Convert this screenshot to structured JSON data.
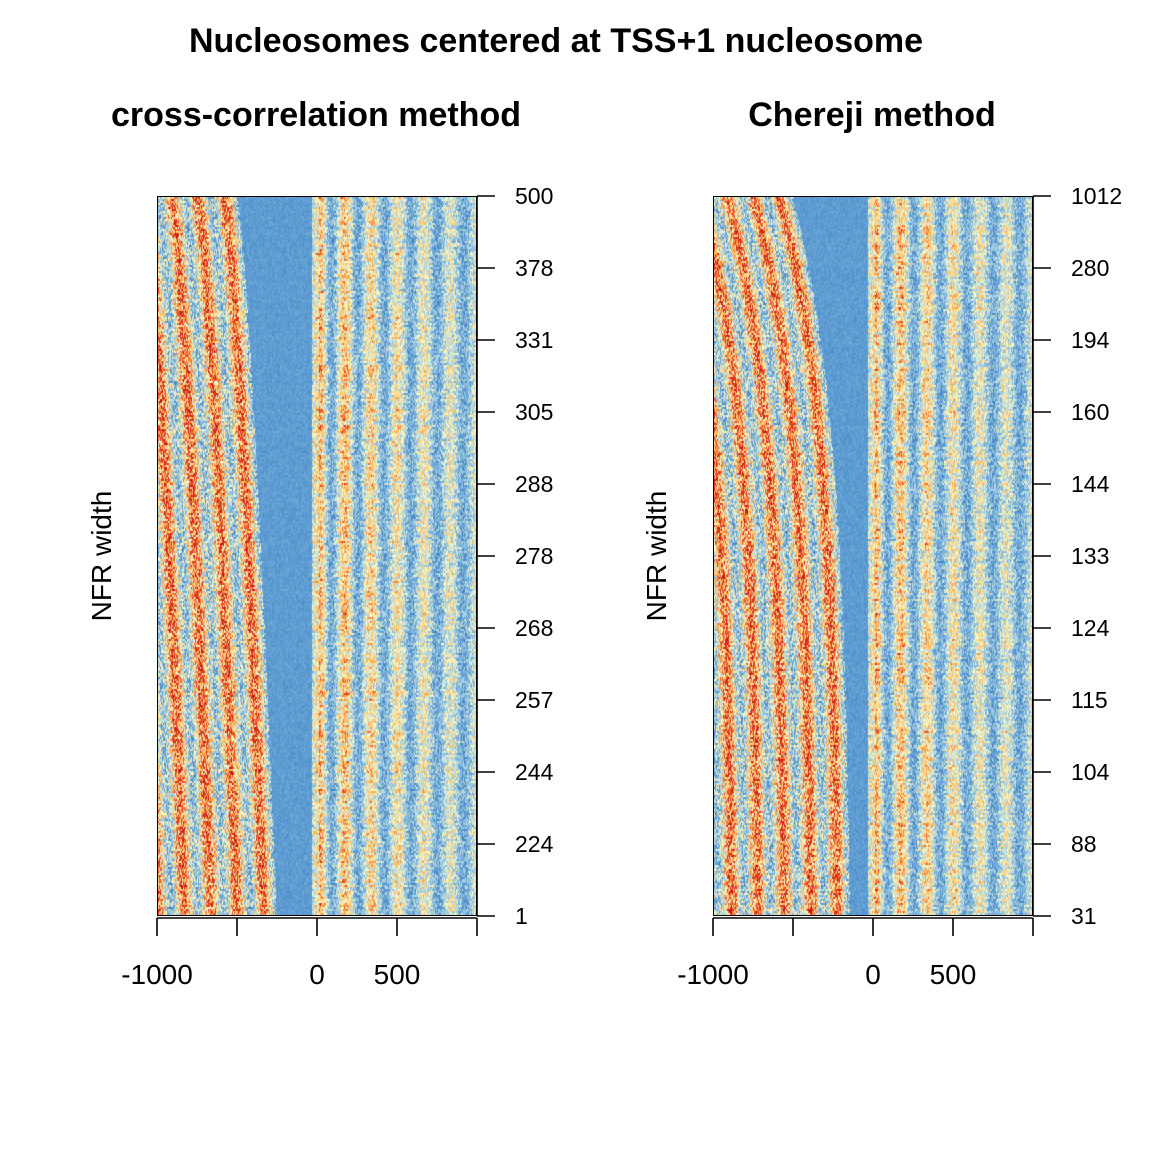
{
  "title": "Nucleosomes centered at TSS+1 nucleosome",
  "chart_data": [
    {
      "type": "heatmap",
      "title": "cross-correlation method",
      "ylabel": "NFR width",
      "xlabel": "",
      "x_ticks": [
        -1000,
        -500,
        0,
        500,
        1000
      ],
      "x_tick_labels": [
        "-1000",
        "0",
        "500"
      ],
      "x_range": [
        -1000,
        1000
      ],
      "y_tick_labels": [
        "1",
        "224",
        "244",
        "257",
        "268",
        "278",
        "288",
        "305",
        "331",
        "378",
        "500"
      ],
      "y_axis_side": "right",
      "nfr_range": [
        224,
        500
      ],
      "color_scale": [
        "#2e6db2",
        "#5b9bd2",
        "#9fcbe5",
        "#fffcc4",
        "#fdb04f",
        "#e0301e",
        "#b80f0f"
      ]
    },
    {
      "type": "heatmap",
      "title": "Chereji method",
      "ylabel": "NFR width",
      "xlabel": "",
      "x_ticks": [
        -1000,
        -500,
        0,
        500,
        1000
      ],
      "x_tick_labels": [
        "-1000",
        "0",
        "500"
      ],
      "x_range": [
        -1000,
        1000
      ],
      "y_tick_labels": [
        "31",
        "88",
        "104",
        "115",
        "124",
        "133",
        "144",
        "160",
        "194",
        "280",
        "1012"
      ],
      "y_axis_side": "right",
      "nfr_range": [
        88,
        500
      ],
      "color_scale": [
        "#2e6db2",
        "#5b9bd2",
        "#9fcbe5",
        "#fffcc4",
        "#fdb04f",
        "#e0301e",
        "#b80f0f"
      ]
    }
  ]
}
